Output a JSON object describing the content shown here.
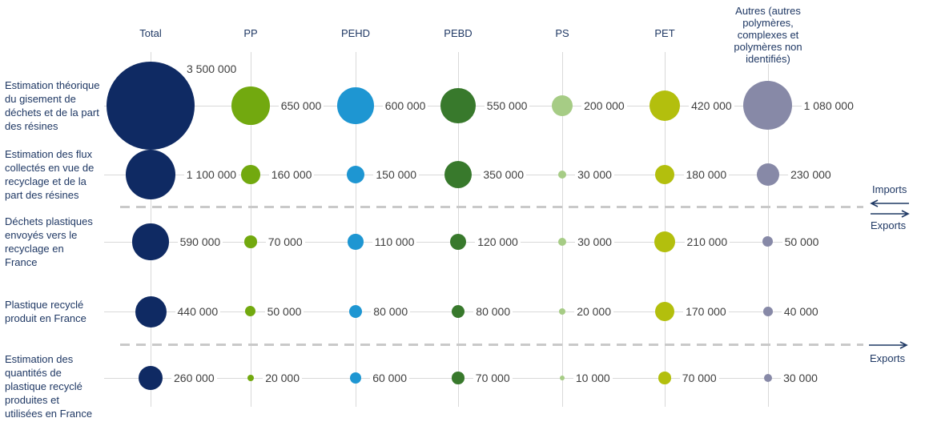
{
  "chart_data": {
    "type": "bubble",
    "title": "",
    "legend_position": "none",
    "grid": true,
    "columns": [
      {
        "label": "Total",
        "color": "#0f2a63"
      },
      {
        "label": "PP",
        "color": "#72a90f"
      },
      {
        "label": "PEHD",
        "color": "#1e96d2"
      },
      {
        "label": "PEBD",
        "color": "#38792c"
      },
      {
        "label": "PS",
        "color": "#a6cc85"
      },
      {
        "label": "PET",
        "color": "#b3bf0d"
      },
      {
        "label": "Autres (autres\npolymères,\ncomplexes et\npolymères non\nidentifiés)",
        "color": "#8789a7"
      }
    ],
    "rows": [
      {
        "label": "Estimation théorique\ndu gisement de\ndéchets et de la part\ndes résines"
      },
      {
        "label": "Estimation des flux\ncollectés en vue de\nrecyclage et de la\npart des résines"
      },
      {
        "label": "Déchets plastiques\nenvoyés vers le\nrecyclage en\nFrance"
      },
      {
        "label": "Plastique recyclé\nproduit en France"
      },
      {
        "label": "Estimation des\nquantités de\nplastique recyclé\nproduites et\nutilisées en France"
      }
    ],
    "values": [
      [
        3500000,
        650000,
        600000,
        550000,
        200000,
        420000,
        1080000
      ],
      [
        1100000,
        160000,
        150000,
        350000,
        30000,
        180000,
        230000
      ],
      [
        590000,
        70000,
        110000,
        120000,
        30000,
        210000,
        50000
      ],
      [
        440000,
        50000,
        80000,
        80000,
        20000,
        170000,
        40000
      ],
      [
        260000,
        20000,
        60000,
        70000,
        10000,
        70000,
        30000
      ]
    ],
    "value_labels": [
      [
        "3 500 000",
        "650 000",
        "600 000",
        "550 000",
        "200 000",
        "420 000",
        "1 080 000"
      ],
      [
        "1 100 000",
        "160 000",
        "150 000",
        "350 000",
        "30 000",
        "180 000",
        "230 000"
      ],
      [
        "590 000",
        "70 000",
        "110 000",
        "120 000",
        "30 000",
        "210 000",
        "50 000"
      ],
      [
        "440 000",
        "50 000",
        "80 000",
        "80 000",
        "20 000",
        "170 000",
        "40 000"
      ],
      [
        "260 000",
        "20 000",
        "60 000",
        "70 000",
        "10 000",
        "70 000",
        "30 000"
      ]
    ],
    "separators": [
      {
        "after_row": 1,
        "imports_label": "Imports",
        "exports_label": "Exports"
      },
      {
        "after_row": 3,
        "exports_label": "Exports"
      }
    ]
  },
  "colors": {
    "heading_text": "#1f3864",
    "value_text": "#3f3f3f",
    "gridline": "#d9d9d9",
    "dashed_line": "#c9c9c9",
    "arrow": "#1f3864",
    "background": "#ffffff"
  }
}
